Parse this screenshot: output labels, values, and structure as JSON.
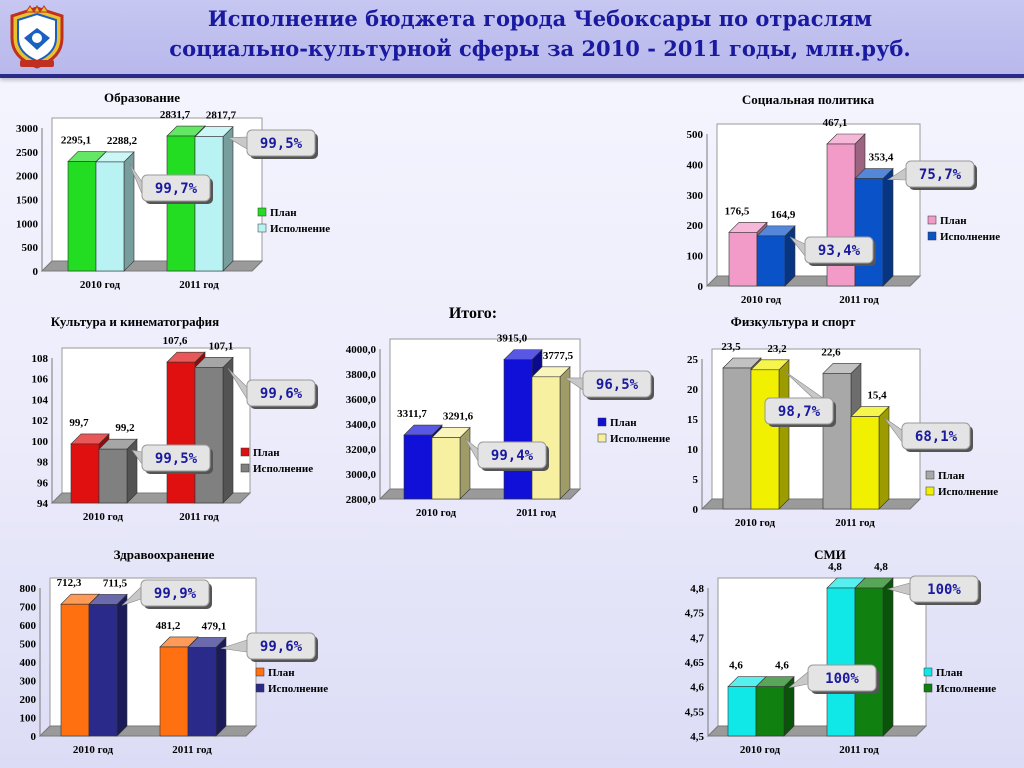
{
  "title": {
    "line1": "Исполнение бюджета города Чебоксары по отраслям",
    "line2": "социально-культурной сферы за 2010 - 2011 годы, млн.руб."
  },
  "chart_data": [
    {
      "type": "bar",
      "title": "Образование",
      "categories": [
        "2010  год",
        "2011 год"
      ],
      "series": [
        {
          "name": "План",
          "values": [
            2295.1,
            2831.7
          ],
          "labels": [
            "2295,1",
            "2831,7"
          ],
          "color": "#22dd22"
        },
        {
          "name": "Исполнение",
          "values": [
            2288.2,
            2817.7
          ],
          "labels": [
            "2288,2",
            "2817,7"
          ],
          "color": "#b8f2f2"
        }
      ],
      "yticks": [
        "0",
        "500",
        "1000",
        "1500",
        "2000",
        "2500",
        "3000"
      ],
      "ylim": [
        0,
        3000
      ],
      "callouts": [
        {
          "text": "99,7%",
          "target": 0
        },
        {
          "text": "99,5%",
          "target": 1
        }
      ]
    },
    {
      "type": "bar",
      "title": "Социальная политика",
      "categories": [
        "2010 год",
        "2011 год"
      ],
      "series": [
        {
          "name": "План",
          "values": [
            176.5,
            467.1
          ],
          "labels": [
            "176,5",
            "467,1"
          ],
          "color": "#f29ac8"
        },
        {
          "name": "Исполнение",
          "values": [
            164.9,
            353.4
          ],
          "labels": [
            "164,9",
            "353,4"
          ],
          "color": "#0a52c8"
        }
      ],
      "yticks": [
        "0",
        "100",
        "200",
        "300",
        "400",
        "500"
      ],
      "ylim": [
        0,
        500
      ],
      "callouts": [
        {
          "text": "93,4%",
          "target": 0
        },
        {
          "text": "75,7%",
          "target": 1
        }
      ]
    },
    {
      "type": "bar",
      "title": "Культура и кинематография",
      "categories": [
        "2010 год",
        "2011 год"
      ],
      "series": [
        {
          "name": "План",
          "values": [
            99.7,
            107.6
          ],
          "labels": [
            "99,7",
            "107,6"
          ],
          "color": "#e01010"
        },
        {
          "name": "Исполнение",
          "values": [
            99.2,
            107.1
          ],
          "labels": [
            "99,2",
            "107,1"
          ],
          "color": "#808080"
        }
      ],
      "yticks": [
        "94",
        "96",
        "98",
        "100",
        "102",
        "104",
        "106",
        "108"
      ],
      "ylim": [
        94,
        108
      ],
      "callouts": [
        {
          "text": "99,5%",
          "target": 0
        },
        {
          "text": "99,6%",
          "target": 1
        }
      ]
    },
    {
      "type": "bar",
      "title": "Итого:",
      "categories": [
        "2010 год",
        "2011 год"
      ],
      "series": [
        {
          "name": "План",
          "values": [
            3311.7,
            3915.0
          ],
          "labels": [
            "3311,7",
            "3915,0"
          ],
          "color": "#1010d8"
        },
        {
          "name": "Исполнение",
          "values": [
            3291.6,
            3777.5
          ],
          "labels": [
            "3291,6",
            "3777,5"
          ],
          "color": "#f6f0a0"
        }
      ],
      "yticks": [
        "2800,0",
        "3000,0",
        "3200,0",
        "3400,0",
        "3600,0",
        "3800,0",
        "4000,0"
      ],
      "ylim": [
        2800,
        4000
      ],
      "callouts": [
        {
          "text": "99,4%",
          "target": 0
        },
        {
          "text": "96,5%",
          "target": 1
        }
      ]
    },
    {
      "type": "bar",
      "title": "Физкультура и спорт",
      "categories": [
        "2010 год",
        "2011 год"
      ],
      "series": [
        {
          "name": "План",
          "values": [
            23.5,
            22.6
          ],
          "labels": [
            "23,5",
            "22,6"
          ],
          "color": "#a8a8a8"
        },
        {
          "name": "Исполнение",
          "values": [
            23.2,
            15.4
          ],
          "labels": [
            "23,2",
            "15,4"
          ],
          "color": "#f0f000"
        }
      ],
      "yticks": [
        "0",
        "5",
        "10",
        "15",
        "20",
        "25"
      ],
      "ylim": [
        0,
        25
      ],
      "callouts": [
        {
          "text": "98,7%",
          "target": 0
        },
        {
          "text": "68,1%",
          "target": 1
        }
      ]
    },
    {
      "type": "bar",
      "title": "Здравоохранение",
      "categories": [
        "2010 год",
        "2011 год"
      ],
      "series": [
        {
          "name": "План",
          "values": [
            712.3,
            481.2
          ],
          "labels": [
            "712,3",
            "481,2"
          ],
          "color": "#ff7010"
        },
        {
          "name": "Исполнение",
          "values": [
            711.5,
            479.1
          ],
          "labels": [
            "711,5",
            "479,1"
          ],
          "color": "#2a2a8a"
        }
      ],
      "yticks": [
        "0",
        "100",
        "200",
        "300",
        "400",
        "500",
        "600",
        "700",
        "800"
      ],
      "ylim": [
        0,
        800
      ],
      "callouts": [
        {
          "text": "99,9%",
          "target": 0
        },
        {
          "text": "99,6%",
          "target": 1
        }
      ]
    },
    {
      "type": "bar",
      "title": "СМИ",
      "categories": [
        "2010 год",
        "2011 год"
      ],
      "series": [
        {
          "name": "План",
          "values": [
            4.6,
            4.8
          ],
          "labels": [
            "4,6",
            "4,8"
          ],
          "color": "#10e8e8"
        },
        {
          "name": "Исполнение",
          "values": [
            4.6,
            4.8
          ],
          "labels": [
            "4,6",
            "4,8"
          ],
          "color": "#108010"
        }
      ],
      "yticks": [
        "4,5",
        "4,55",
        "4,6",
        "4,65",
        "4,7",
        "4,75",
        "4,8"
      ],
      "ylim": [
        4.5,
        4.8
      ],
      "callouts": [
        {
          "text": "100%",
          "target": 1
        },
        {
          "text": "100%",
          "target": 0
        }
      ]
    }
  ]
}
